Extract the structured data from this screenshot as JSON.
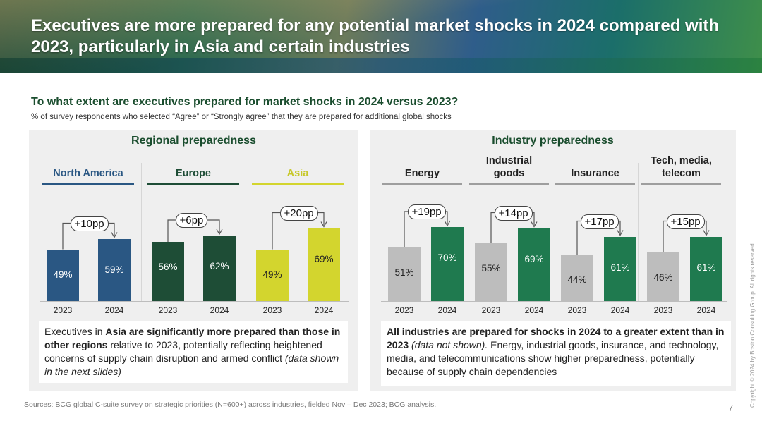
{
  "title": "Executives are more prepared for any potential market shocks in 2024 compared with 2023, particularly in Asia and certain industries",
  "question": "To what extent are executives prepared for market shocks in 2024 versus 2023?",
  "subtitle": "% of survey respondents who selected “Agree” or “Strongly agree” that they are prepared for additional global shocks",
  "regional_title": "Regional preparedness",
  "industry_title": "Industry preparedness",
  "note_regional": {
    "p1": "Executives in ",
    "b1": "Asia are significantly more prepared than those in other regions",
    "p2": " relative to 2023, potentially reflecting heightened concerns of supply chain disruption and armed conflict ",
    "i1": "(data shown in the next slides)"
  },
  "note_industry": {
    "b1": "All industries are prepared for shocks in 2024 to a greater extent than in 2023",
    "i1": " (data not shown).",
    "p1": " Energy, industrial goods, insurance, and technology, media, and telecommunications show higher preparedness, potentially because of supply chain dependencies"
  },
  "source": "Sources: BCG global C-suite survey on strategic priorities (N=600+) across industries, fielded Nov – Dec 2023; BCG analysis.",
  "page_number": "7",
  "copyright": "Copyright © 2024 by Boston Consulting Group. All rights reserved.",
  "chart_data": [
    {
      "type": "bar",
      "title": "Regional preparedness",
      "categories": [
        "2023",
        "2024"
      ],
      "unit": "%",
      "groups": [
        {
          "name": "North America",
          "delta": "+10pp",
          "values": [
            49,
            59
          ],
          "labels": [
            "49%",
            "59%"
          ],
          "color": "#2a5783",
          "label_colors": [
            "#ffffff",
            "#ffffff"
          ]
        },
        {
          "name": "Europe",
          "delta": "+6pp",
          "values": [
            56,
            62
          ],
          "labels": [
            "56%",
            "62%"
          ],
          "color": "#1e4d36",
          "label_colors": [
            "#ffffff",
            "#ffffff"
          ]
        },
        {
          "name": "Asia",
          "delta": "+20pp",
          "values": [
            49,
            69
          ],
          "labels": [
            "49%",
            "69%"
          ],
          "color": "#d3d52e",
          "label_colors": [
            "#222222",
            "#222222"
          ]
        }
      ]
    },
    {
      "type": "bar",
      "title": "Industry preparedness",
      "categories": [
        "2023",
        "2024"
      ],
      "unit": "%",
      "groups": [
        {
          "name": "Energy",
          "delta": "+19pp",
          "values": [
            51,
            70
          ],
          "labels": [
            "51%",
            "70%"
          ],
          "colors": [
            "#bdbdbd",
            "#1f7a4f"
          ],
          "label_colors": [
            "#222222",
            "#ffffff"
          ]
        },
        {
          "name": "Industrial goods",
          "delta": "+14pp",
          "values": [
            55,
            69
          ],
          "labels": [
            "55%",
            "69%"
          ],
          "colors": [
            "#bdbdbd",
            "#1f7a4f"
          ],
          "label_colors": [
            "#222222",
            "#ffffff"
          ]
        },
        {
          "name": "Insurance",
          "delta": "+17pp",
          "values": [
            44,
            61
          ],
          "labels": [
            "44%",
            "61%"
          ],
          "colors": [
            "#bdbdbd",
            "#1f7a4f"
          ],
          "label_colors": [
            "#222222",
            "#ffffff"
          ]
        },
        {
          "name": "Tech, media, telecom",
          "delta": "+15pp",
          "values": [
            46,
            61
          ],
          "labels": [
            "46%",
            "61%"
          ],
          "colors": [
            "#bdbdbd",
            "#1f7a4f"
          ],
          "label_colors": [
            "#222222",
            "#ffffff"
          ]
        }
      ]
    }
  ]
}
